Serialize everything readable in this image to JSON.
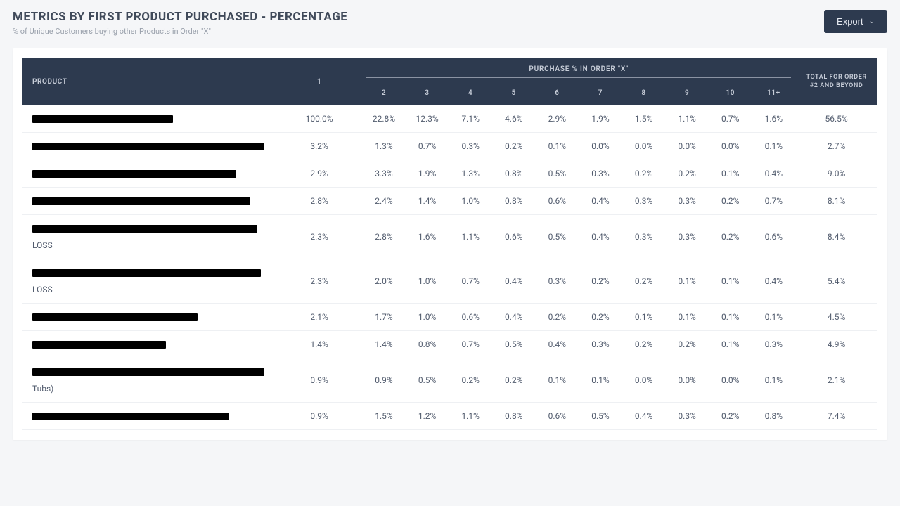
{
  "header": {
    "title": "METRICS BY FIRST PRODUCT PURCHASED - PERCENTAGE",
    "subtitle": "% of Unique Customers buying other Products in Order \"X\"",
    "export_label": "Export"
  },
  "table": {
    "type": "table",
    "header_bg": "#2d3a4f",
    "header_text_color": "#c7cdd8",
    "row_border_color": "#eef0f3",
    "cell_text_color": "#525c6e",
    "product_col_label": "PRODUCT",
    "first_col_label": "1",
    "span_header_label": "PURCHASE % IN ORDER \"X\"",
    "order_cols": [
      "2",
      "3",
      "4",
      "5",
      "6",
      "7",
      "8",
      "9",
      "10",
      "11+"
    ],
    "total_col_label": "TOTAL FOR ORDER #2 AND BEYOND",
    "rows": [
      {
        "redact_w": 200,
        "extra": "",
        "first": "100.0%",
        "vals": [
          "22.8%",
          "12.3%",
          "7.1%",
          "4.6%",
          "2.9%",
          "1.9%",
          "1.5%",
          "1.1%",
          "0.7%",
          "1.6%"
        ],
        "total": "56.5%"
      },
      {
        "redact_w": 330,
        "extra": "",
        "first": "3.2%",
        "vals": [
          "1.3%",
          "0.7%",
          "0.3%",
          "0.2%",
          "0.1%",
          "0.0%",
          "0.0%",
          "0.0%",
          "0.0%",
          "0.1%"
        ],
        "total": "2.7%"
      },
      {
        "redact_w": 290,
        "extra": "",
        "first": "2.9%",
        "vals": [
          "3.3%",
          "1.9%",
          "1.3%",
          "0.8%",
          "0.5%",
          "0.3%",
          "0.2%",
          "0.2%",
          "0.1%",
          "0.4%"
        ],
        "total": "9.0%"
      },
      {
        "redact_w": 310,
        "extra": "",
        "first": "2.8%",
        "vals": [
          "2.4%",
          "1.4%",
          "1.0%",
          "0.8%",
          "0.6%",
          "0.4%",
          "0.3%",
          "0.3%",
          "0.2%",
          "0.7%"
        ],
        "total": "8.1%"
      },
      {
        "redact_w": 320,
        "extra": "LOSS",
        "first": "2.3%",
        "vals": [
          "2.8%",
          "1.6%",
          "1.1%",
          "0.6%",
          "0.5%",
          "0.4%",
          "0.3%",
          "0.3%",
          "0.2%",
          "0.6%"
        ],
        "total": "8.4%"
      },
      {
        "redact_w": 325,
        "extra": "LOSS",
        "first": "2.3%",
        "vals": [
          "2.0%",
          "1.0%",
          "0.7%",
          "0.4%",
          "0.3%",
          "0.2%",
          "0.2%",
          "0.1%",
          "0.1%",
          "0.4%"
        ],
        "total": "5.4%"
      },
      {
        "redact_w": 235,
        "extra": "",
        "first": "2.1%",
        "vals": [
          "1.7%",
          "1.0%",
          "0.6%",
          "0.4%",
          "0.2%",
          "0.2%",
          "0.1%",
          "0.1%",
          "0.1%",
          "0.1%"
        ],
        "total": "4.5%"
      },
      {
        "redact_w": 190,
        "extra": "",
        "first": "1.4%",
        "vals": [
          "1.4%",
          "0.8%",
          "0.7%",
          "0.5%",
          "0.4%",
          "0.3%",
          "0.2%",
          "0.2%",
          "0.1%",
          "0.3%"
        ],
        "total": "4.9%"
      },
      {
        "redact_w": 330,
        "extra": "Tubs)",
        "first": "0.9%",
        "vals": [
          "0.9%",
          "0.5%",
          "0.2%",
          "0.2%",
          "0.1%",
          "0.1%",
          "0.0%",
          "0.0%",
          "0.0%",
          "0.1%"
        ],
        "total": "2.1%"
      },
      {
        "redact_w": 280,
        "extra": "",
        "first": "0.9%",
        "vals": [
          "1.5%",
          "1.2%",
          "1.1%",
          "0.8%",
          "0.6%",
          "0.5%",
          "0.4%",
          "0.3%",
          "0.2%",
          "0.8%"
        ],
        "total": "7.4%"
      }
    ]
  }
}
